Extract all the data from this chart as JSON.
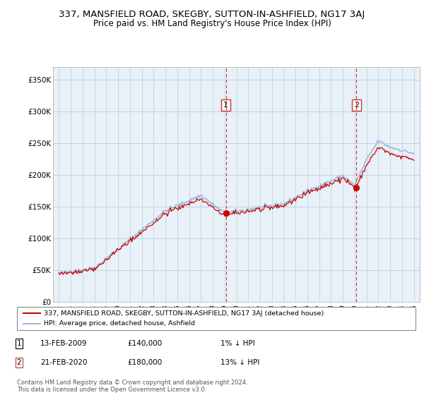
{
  "title": "337, MANSFIELD ROAD, SKEGBY, SUTTON-IN-ASHFIELD, NG17 3AJ",
  "subtitle": "Price paid vs. HM Land Registry's House Price Index (HPI)",
  "ylabel_ticks": [
    "£0",
    "£50K",
    "£100K",
    "£150K",
    "£200K",
    "£250K",
    "£300K",
    "£350K"
  ],
  "ytick_values": [
    0,
    50000,
    100000,
    150000,
    200000,
    250000,
    300000,
    350000
  ],
  "ylim": [
    0,
    370000
  ],
  "sale1_year": 2009.12,
  "sale1_price": 140000,
  "sale1_date": "13-FEB-2009",
  "sale1_pct": "1% ↓ HPI",
  "sale2_year": 2020.14,
  "sale2_price": 180000,
  "sale2_date": "21-FEB-2020",
  "sale2_pct": "13% ↓ HPI",
  "legend_line1": "337, MANSFIELD ROAD, SKEGBY, SUTTON-IN-ASHFIELD, NG17 3AJ (detached house)",
  "legend_line2": "HPI: Average price, detached house, Ashfield",
  "footer": "Contains HM Land Registry data © Crown copyright and database right 2024.\nThis data is licensed under the Open Government Licence v3.0.",
  "line_color_red": "#cc0000",
  "line_color_blue": "#99bbdd",
  "vline_color": "#cc3333",
  "chart_bg": "#e8f0f8",
  "grid_color": "#c0cdd8",
  "title_fontsize": 9.5,
  "subtitle_fontsize": 8.5
}
